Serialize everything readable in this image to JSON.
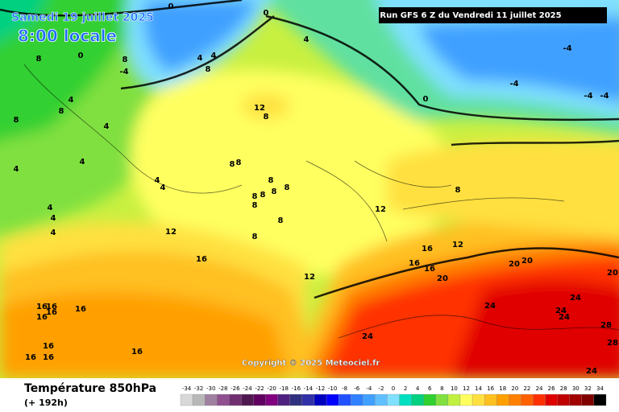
{
  "header": {
    "valid_date": "Samedi 19 juillet 2025",
    "local_time": "8:00 locale",
    "run": "Run GFS 6 Z du Vendredi 11 juillet 2025"
  },
  "copyright": "Copyright © 2025 Meteociel.fr",
  "footer": {
    "title": "Température 850hPa",
    "lead": "(+ 192h)"
  },
  "legend": {
    "values": [
      -34,
      -32,
      -30,
      -28,
      -26,
      -24,
      -22,
      -20,
      -18,
      -16,
      -14,
      -12,
      -10,
      -8,
      -6,
      -4,
      -2,
      0,
      2,
      4,
      6,
      8,
      10,
      12,
      14,
      16,
      18,
      20,
      22,
      24,
      26,
      28,
      30,
      32,
      34
    ],
    "colors": [
      "#d8d8d8",
      "#b8b8b8",
      "#a080a0",
      "#905090",
      "#703070",
      "#501850",
      "#600060",
      "#800080",
      "#502080",
      "#303080",
      "#3030a8",
      "#0000c0",
      "#0000ff",
      "#2050ff",
      "#3080ff",
      "#40a0ff",
      "#60c0ff",
      "#80e0ff",
      "#00e0c0",
      "#00d080",
      "#30d030",
      "#80e040",
      "#c0f040",
      "#ffff60",
      "#ffe040",
      "#ffc020",
      "#ffa000",
      "#ff8000",
      "#ff6000",
      "#ff3000",
      "#e00000",
      "#c00000",
      "#a00000",
      "#800000",
      "#000000"
    ]
  },
  "contour_labels": [
    0,
    0,
    4,
    0,
    8,
    -4,
    4,
    4,
    8,
    8,
    4,
    8,
    8,
    4,
    4,
    4,
    4,
    4,
    4,
    4,
    4,
    12,
    8,
    8,
    8,
    8,
    8,
    8,
    8,
    8,
    8,
    8,
    8,
    12,
    16,
    12,
    8,
    0,
    -4,
    -4,
    -4,
    -4,
    16,
    12,
    16,
    16,
    20,
    20,
    20,
    12,
    20,
    16,
    16,
    16,
    16,
    16,
    16,
    16,
    16,
    16,
    24,
    24,
    24,
    24,
    28,
    28,
    24,
    24
  ]
}
